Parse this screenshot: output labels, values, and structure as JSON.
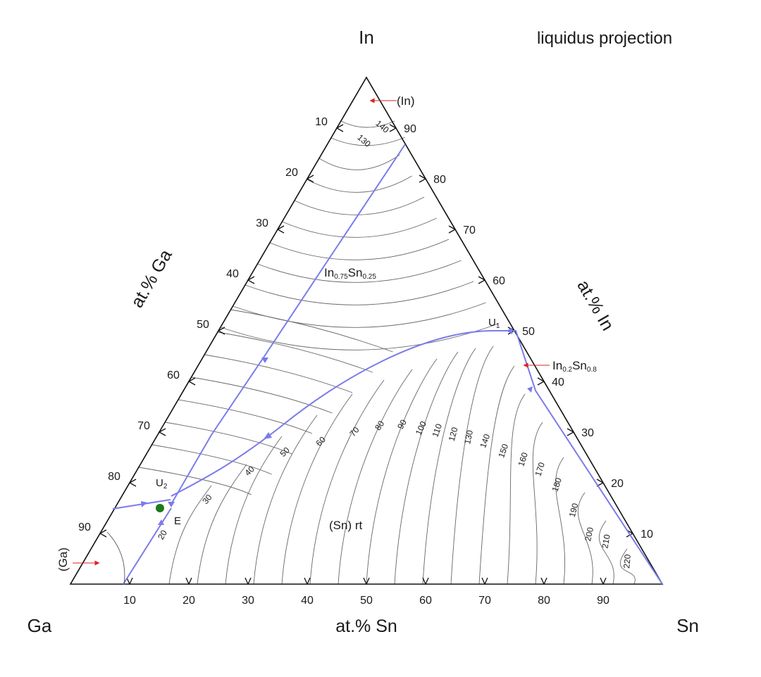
{
  "title": "liquidus projection",
  "corners": {
    "top": "In",
    "left": "Ga",
    "right": "Sn"
  },
  "axes": {
    "left": {
      "title": "at.% Ga",
      "ticks": [
        "10",
        "20",
        "30",
        "40",
        "50",
        "60",
        "70",
        "80",
        "90"
      ]
    },
    "right": {
      "title": "at.% In",
      "ticks": [
        "90",
        "80",
        "70",
        "60",
        "50",
        "40",
        "30",
        "20",
        "10"
      ]
    },
    "bottom": {
      "title": "at.% Sn",
      "ticks": [
        "10",
        "20",
        "30",
        "40",
        "50",
        "60",
        "70",
        "80",
        "90"
      ]
    }
  },
  "phases": {
    "in": "(In)",
    "in075": {
      "a": "In",
      "sa": "0.75",
      "b": "Sn",
      "sb": "0.25"
    },
    "in02": {
      "a": "In",
      "sa": "0.2",
      "b": "Sn",
      "sb": "0.8"
    },
    "sn": "(Sn) rt",
    "ga": "(Ga)"
  },
  "points": {
    "u1": {
      "main": "U",
      "sub": "1"
    },
    "u2": {
      "main": "U",
      "sub": "2"
    },
    "e": "E"
  },
  "colors": {
    "boundary": "#7b7bea",
    "isotherm": "#555555",
    "frame": "#111111",
    "arrow": "#e02020",
    "dot": "#1a7a1a"
  },
  "chart_data": {
    "type": "ternary-liquidus-projection",
    "components": [
      "In",
      "Ga",
      "Sn"
    ],
    "composition_units": "at.%",
    "isotherm_labels": [
      "140",
      "130",
      "20",
      "30",
      "40",
      "50",
      "60",
      "70",
      "80",
      "90",
      "100",
      "110",
      "120",
      "130",
      "140",
      "150",
      "160",
      "170",
      "180",
      "190",
      "200",
      "210",
      "220"
    ],
    "invariant_points": [
      {
        "name": "U1",
        "at_pct": {
          "In": 50.5,
          "Sn": 46.5,
          "Ga": 3
        }
      },
      {
        "name": "U2",
        "at_pct": {
          "In": 16.5,
          "Sn": 9.5,
          "Ga": 74
        }
      },
      {
        "name": "E",
        "at_pct": {
          "In": 14,
          "Sn": 9,
          "Ga": 77
        }
      }
    ]
  }
}
